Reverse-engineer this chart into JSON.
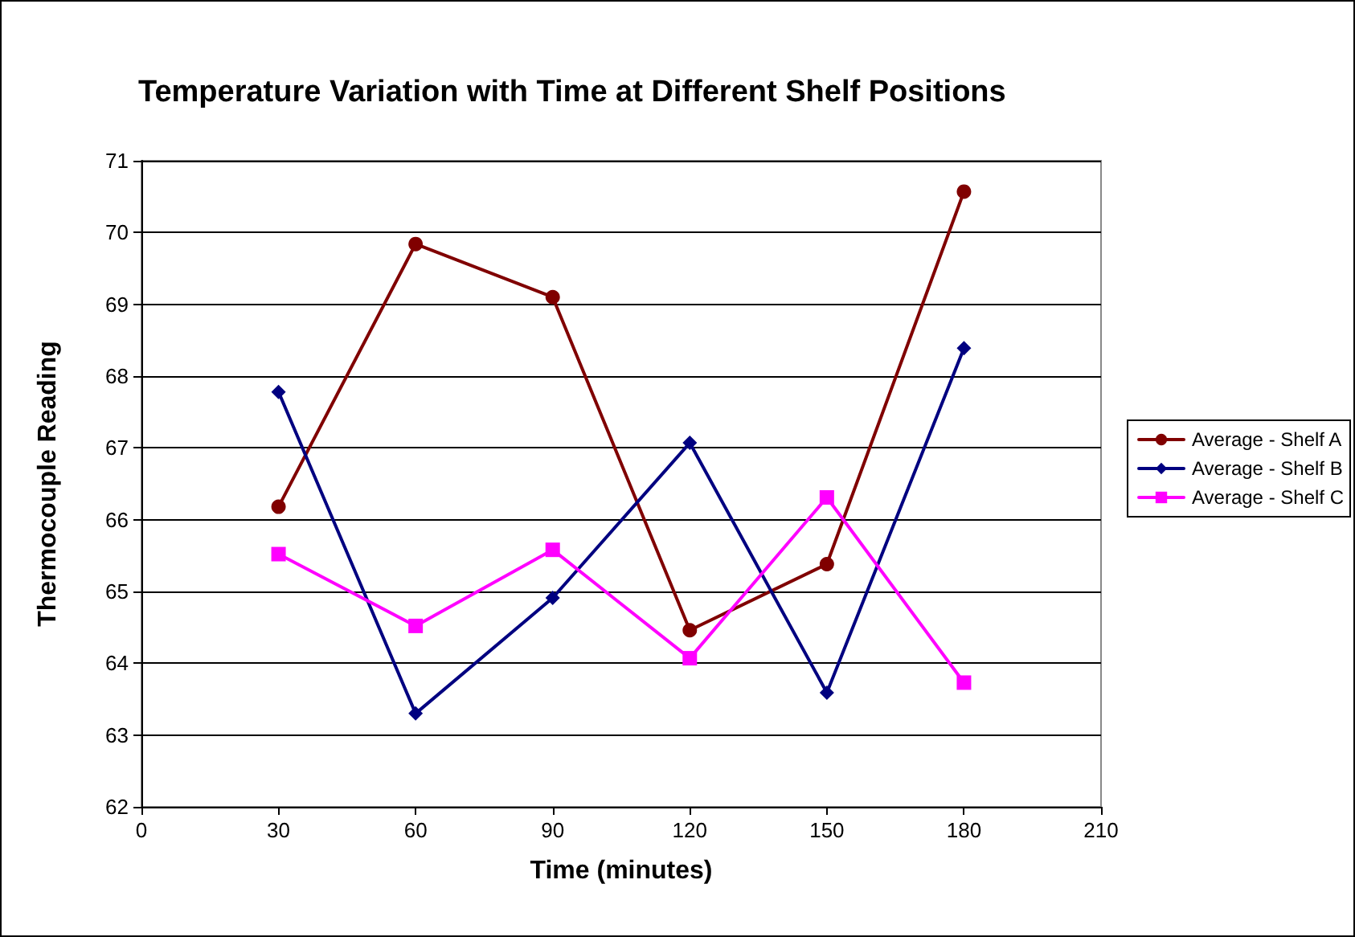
{
  "chart_data": {
    "type": "line",
    "title": "Temperature Variation with Time at Different Shelf Positions",
    "xlabel": "Time (minutes)",
    "ylabel": "Thermocouple Reading",
    "x": [
      30,
      60,
      90,
      120,
      150,
      180
    ],
    "series": [
      {
        "name": "Average - Shelf A",
        "color": "#800000",
        "marker": "circle",
        "values": [
          66.18,
          69.84,
          69.1,
          64.46,
          65.38,
          70.57
        ]
      },
      {
        "name": "Average - Shelf B",
        "color": "#000080",
        "marker": "diamond",
        "values": [
          67.78,
          63.3,
          64.91,
          67.07,
          63.59,
          68.39
        ]
      },
      {
        "name": "Average - Shelf C",
        "color": "#ff00ff",
        "marker": "square",
        "values": [
          65.52,
          64.52,
          65.58,
          64.07,
          66.31,
          63.73
        ]
      }
    ],
    "xlim": [
      0,
      210
    ],
    "xticks": [
      0,
      30,
      60,
      90,
      120,
      150,
      180,
      210
    ],
    "ylim": [
      62,
      71
    ],
    "yticks": [
      62,
      63,
      64,
      65,
      66,
      67,
      68,
      69,
      70,
      71
    ],
    "grid": "y",
    "legend": "right",
    "line_style": "solid"
  }
}
